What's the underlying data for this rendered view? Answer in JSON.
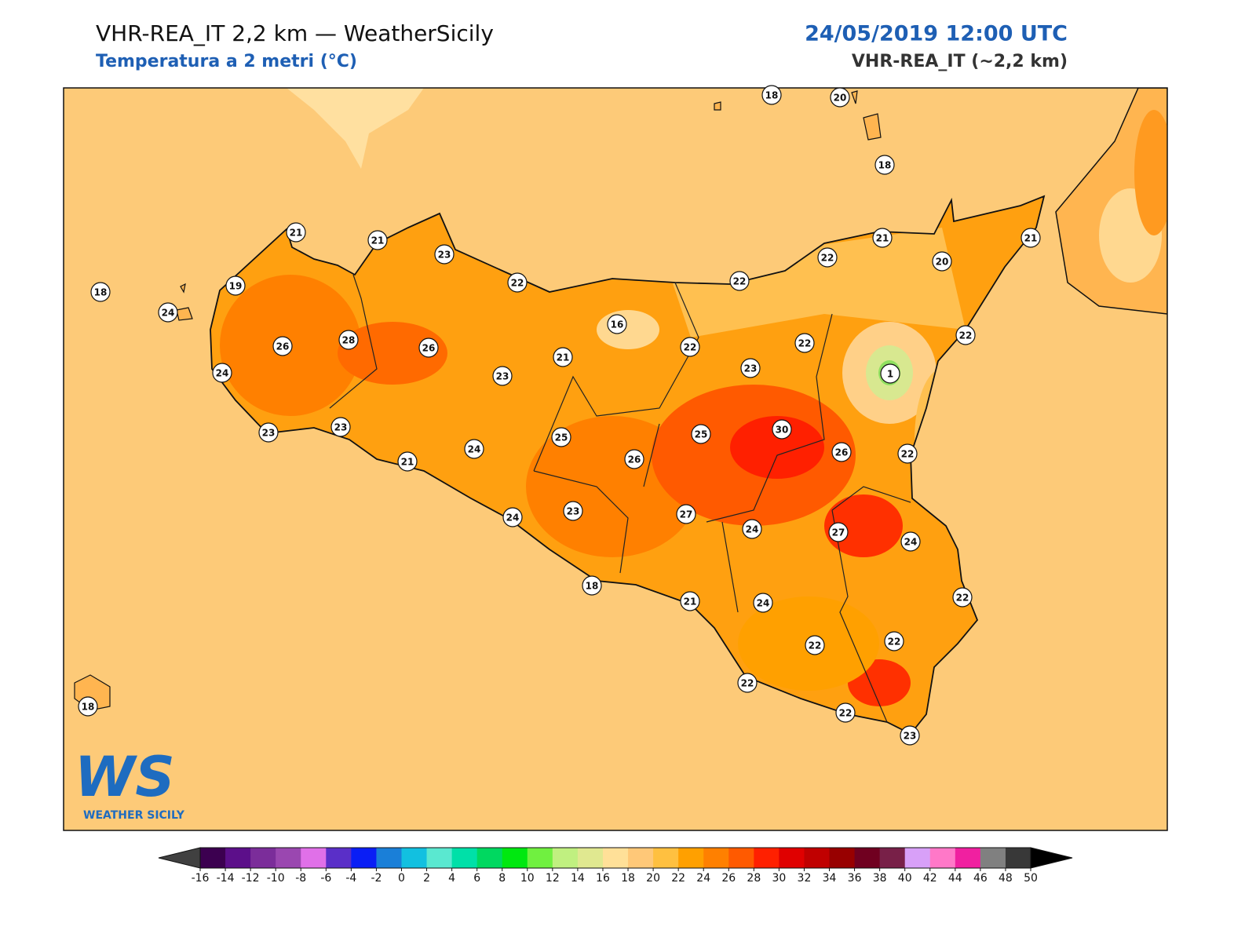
{
  "header": {
    "title": "VHR-REA_IT 2,2 km — WeatherSicily",
    "subtitle": "Temperatura a 2 metri (°C)",
    "date": "24/05/2019 12:00 UTC",
    "model": "VHR-REA_IT (~2,2 km)"
  },
  "stations": [
    21,
    21,
    23,
    22,
    22,
    22,
    21,
    20,
    21,
    18,
    20,
    18,
    18,
    19,
    24,
    26,
    28,
    26,
    24,
    16,
    22,
    22,
    22,
    21,
    23,
    23,
    1,
    23,
    23,
    21,
    24,
    25,
    25,
    30,
    26,
    22,
    26,
    24,
    23,
    27,
    24,
    27,
    24,
    18,
    21,
    24,
    22,
    22,
    22,
    22,
    22,
    23,
    18
  ],
  "colorbar": {
    "ticks": [
      -16,
      -14,
      -12,
      -10,
      -8,
      -6,
      -4,
      -2,
      0,
      2,
      4,
      6,
      8,
      10,
      12,
      14,
      16,
      18,
      20,
      22,
      24,
      26,
      28,
      30,
      32,
      34,
      36,
      38,
      40,
      42,
      44,
      46,
      48,
      50
    ],
    "colors": [
      "#3c0050",
      "#5c0f8a",
      "#7b2d9a",
      "#9a47b0",
      "#e070e8",
      "#5a2fc8",
      "#0a1ef5",
      "#1a7fd8",
      "#12c0e0",
      "#5ae8d0",
      "#00e0a8",
      "#00d860",
      "#00e810",
      "#70f040",
      "#c0f080",
      "#e0e890",
      "#ffe098",
      "#ffc878",
      "#ffc040",
      "#ffa000",
      "#ff8000",
      "#ff5a00",
      "#ff2000",
      "#e00000",
      "#c00000",
      "#980000",
      "#700020",
      "#782048",
      "#d8a0f8",
      "#ff78c8",
      "#f020a0",
      "#808080",
      "#383838"
    ],
    "under_color": "#404040",
    "over_color": "#000000"
  },
  "logo": {
    "text": "WS",
    "caption": "WEATHER SICILY"
  }
}
